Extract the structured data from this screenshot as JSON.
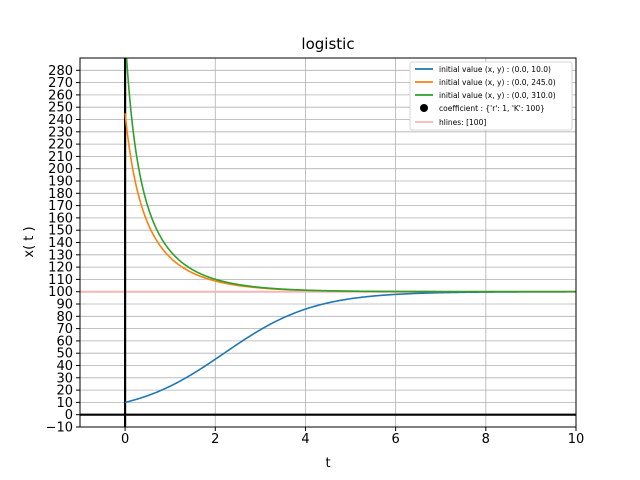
{
  "chart_data": {
    "type": "line",
    "title": "logistic",
    "xlabel": "t",
    "ylabel": "x( t )",
    "xlim": [
      -1,
      10
    ],
    "ylim": [
      -10,
      290
    ],
    "xticks": [
      0,
      2,
      4,
      6,
      8,
      10
    ],
    "yticks": [
      -10,
      0,
      10,
      20,
      30,
      40,
      50,
      60,
      70,
      80,
      90,
      100,
      110,
      120,
      130,
      140,
      150,
      160,
      170,
      180,
      190,
      200,
      210,
      220,
      230,
      240,
      250,
      260,
      270,
      280
    ],
    "grid": true,
    "legend_position": "top-right",
    "series": [
      {
        "name": "initial value (x, y) : (0.0, 10.0)",
        "color": "#1f77b4",
        "model": "logistic",
        "r": 1,
        "K": 100,
        "x0": 10,
        "t_range": [
          0,
          10
        ]
      },
      {
        "name": "initial value (x, y) : (0.0, 245.0)",
        "color": "#ff7f0e",
        "model": "logistic",
        "r": 1,
        "K": 100,
        "x0": 245,
        "t_range": [
          0,
          10
        ]
      },
      {
        "name": "initial value (x, y) : (0.0, 310.0)",
        "color": "#2ca02c",
        "model": "logistic",
        "r": 1,
        "K": 100,
        "x0": 310,
        "t_range": [
          0,
          10
        ]
      }
    ],
    "coefficient_legend": {
      "label": "coefficient : {'r': 1, 'K': 100}",
      "color": "#000000"
    },
    "hlines": {
      "label": "hlines: [100]",
      "values": [
        100
      ],
      "color": "#f4b6b6"
    },
    "reference_lines": {
      "x_zero": 0,
      "y_zero": 0,
      "color": "#000000"
    }
  }
}
